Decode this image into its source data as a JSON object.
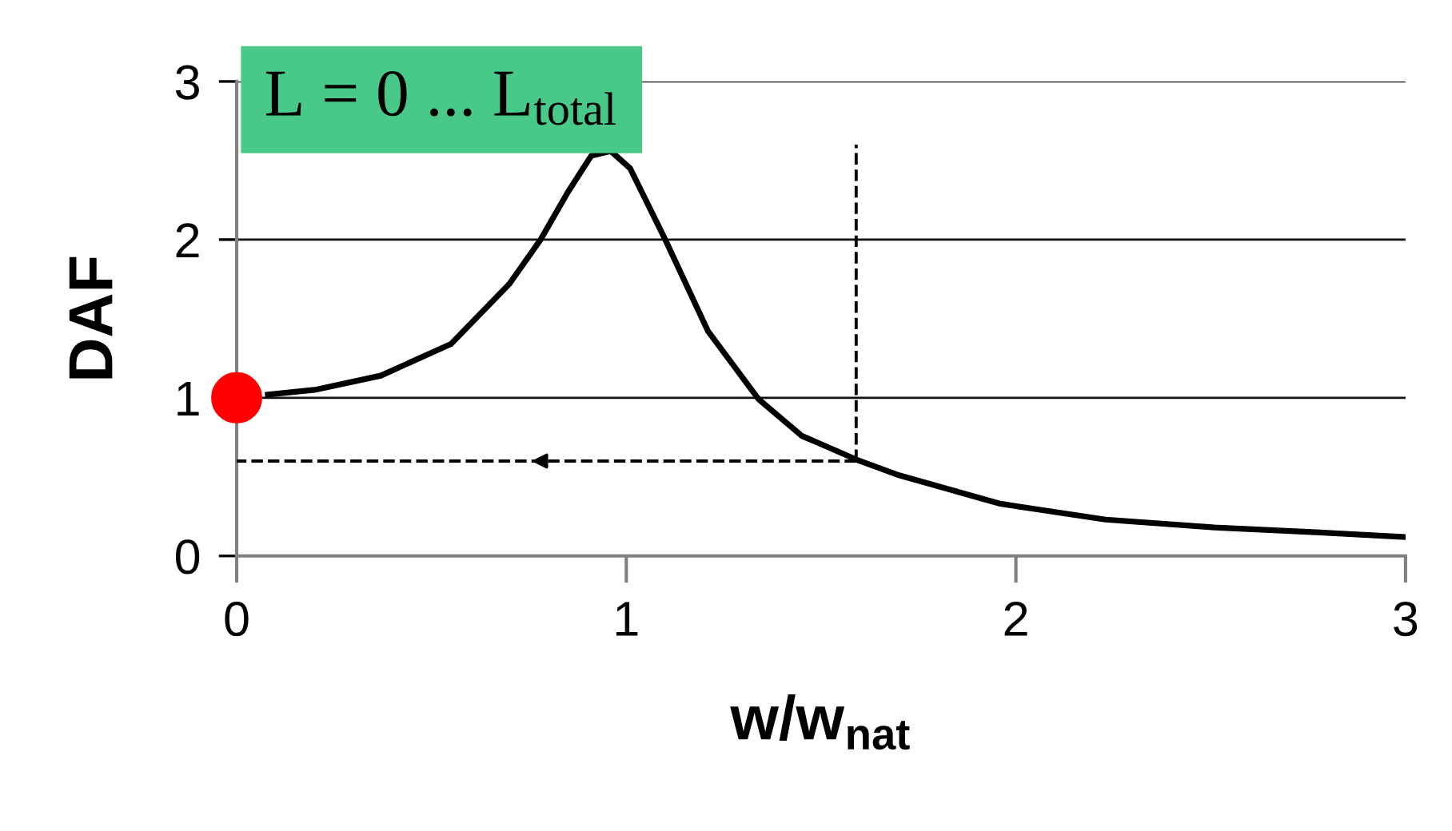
{
  "chart_data": {
    "type": "line",
    "xlabel": "w/w$_{nat}$",
    "ylabel": "DAF",
    "annotations": [
      "L = 0 ... L$_{total}$"
    ],
    "series": [
      {
        "color": "#000000",
        "line_style": "solid",
        "marker": "none",
        "x": [
          0.08,
          0.2,
          0.37,
          0.55,
          0.7,
          0.78,
          0.85,
          0.91,
          0.96,
          1.01,
          1.1,
          1.21,
          1.34,
          1.45,
          1.59,
          1.7,
          1.96,
          2.23,
          2.51,
          2.77,
          3.0
        ],
        "values": [
          1.02,
          1.05,
          1.14,
          1.34,
          1.72,
          2.0,
          2.3,
          2.53,
          2.56,
          2.45,
          2.0,
          1.42,
          0.99,
          0.76,
          0.61,
          0.51,
          0.33,
          0.23,
          0.18,
          0.15,
          0.12
        ]
      },
      {
        "color": "#000000",
        "line_style": "dashed",
        "marker": "none",
        "x": [
          1.59,
          1.59
        ],
        "values": [
          0.6,
          2.6
        ]
      },
      {
        "color": "#000000",
        "line_style": "dashed",
        "marker": "none",
        "x": [
          1.59,
          0
        ],
        "values": [
          0.6,
          0.6
        ]
      },
      {
        "type": "scatter",
        "color": "#ff0000",
        "marker": "circle",
        "x": [
          0
        ],
        "values": [
          1.0
        ]
      }
    ],
    "xlim": [
      0,
      3
    ],
    "ylim": [
      0,
      3
    ],
    "xticks": [
      0,
      1,
      2,
      3
    ],
    "yticks": [
      0,
      1,
      2,
      3
    ],
    "grid": "y",
    "legend": false
  }
}
